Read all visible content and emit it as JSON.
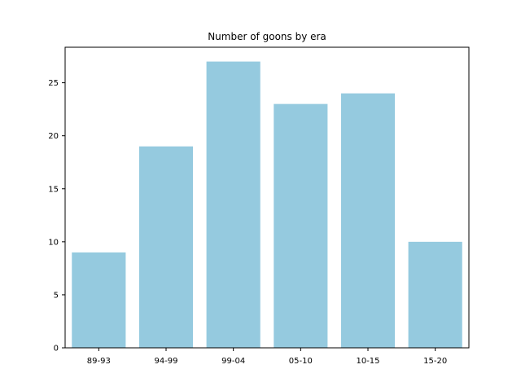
{
  "chart_data": {
    "type": "bar",
    "title": "Number of goons by era",
    "xlabel": "",
    "ylabel": "",
    "categories": [
      "89-93",
      "94-99",
      "99-04",
      "05-10",
      "10-15",
      "15-20"
    ],
    "values": [
      9,
      19,
      27,
      23,
      24,
      10
    ],
    "ylim": [
      0,
      28.35
    ],
    "yticks": [
      0,
      5,
      10,
      15,
      20,
      25
    ],
    "grid": false,
    "bar_color": "#95cadf"
  }
}
